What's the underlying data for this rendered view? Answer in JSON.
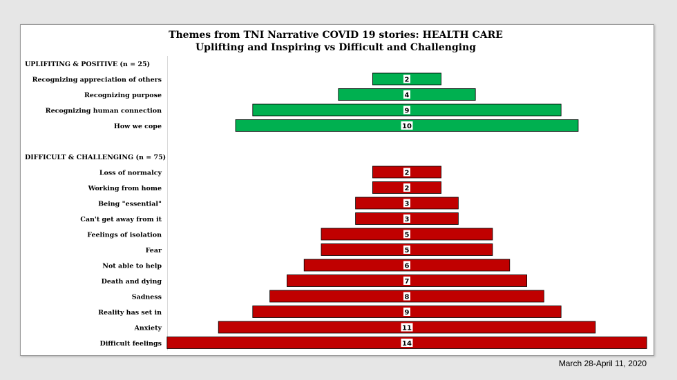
{
  "date_range": "March 28-April 11, 2020",
  "colors": {
    "positive": "#00b050",
    "difficult": "#c00000",
    "background": "#e6e6e6"
  },
  "chart_data": {
    "type": "bar",
    "orientation": "horizontal-centered",
    "title": "Themes from TNI Narrative COVID 19 stories: HEALTH CARE",
    "subtitle": "Uplifting and Inspiring vs Difficult and Challenging",
    "max_value": 14,
    "groups": [
      {
        "name": "UPLIFITING & POSITIVE (n = 25)",
        "color": "#00b050",
        "categories": [
          "Recognizing appreciation of others",
          "Recognizing purpose",
          "Recognizing human connection",
          "How we cope"
        ],
        "values": [
          2,
          4,
          9,
          10
        ]
      },
      {
        "name": "DIFFICULT & CHALLENGING (n = 75)",
        "color": "#c00000",
        "categories": [
          "Loss of normalcy",
          "Working from home",
          "Being \"essential\"",
          "Can't get away from it",
          "Feelings of isolation",
          "Fear",
          "Not able to help",
          "Death and dying",
          "Sadness",
          "Reality has set in",
          "Anxiety",
          "Difficult feelings"
        ],
        "values": [
          2,
          2,
          3,
          3,
          5,
          5,
          6,
          7,
          8,
          9,
          11,
          14
        ]
      }
    ]
  }
}
